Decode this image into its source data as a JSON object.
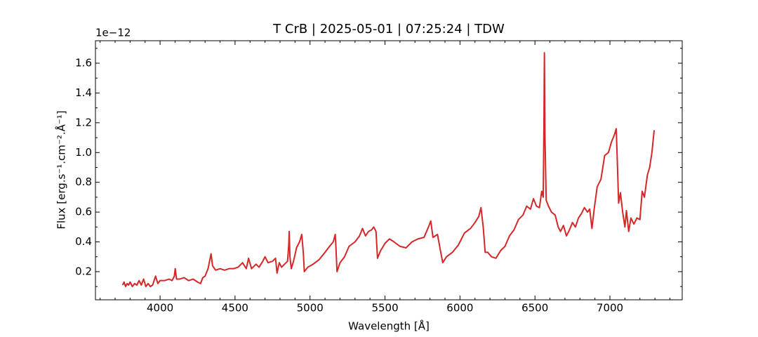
{
  "chart_data": {
    "type": "line",
    "title": "T CrB | 2025-05-01 | 07:25:24 | TDW",
    "x_label": "Wavelength [Å]",
    "y_label": "Flux [erg.s⁻¹.cm⁻².Å⁻¹]",
    "y_offset_label": "1e−12",
    "color": "#d62728",
    "x": [
      3750,
      3760,
      3770,
      3780,
      3790,
      3800,
      3815,
      3830,
      3845,
      3860,
      3875,
      3890,
      3905,
      3920,
      3935,
      3950,
      3970,
      3985,
      4000,
      4030,
      4060,
      4080,
      4095,
      4101,
      4110,
      4130,
      4160,
      4190,
      4220,
      4250,
      4270,
      4285,
      4300,
      4320,
      4340,
      4350,
      4370,
      4400,
      4430,
      4460,
      4490,
      4520,
      4550,
      4575,
      4590,
      4610,
      4640,
      4660,
      4685,
      4700,
      4720,
      4750,
      4770,
      4780,
      4795,
      4810,
      4830,
      4850,
      4858,
      4861,
      4866,
      4875,
      4890,
      4910,
      4930,
      4945,
      4955,
      4962,
      4985,
      5020,
      5060,
      5100,
      5130,
      5155,
      5168,
      5172,
      5180,
      5200,
      5230,
      5260,
      5300,
      5330,
      5350,
      5370,
      5390,
      5410,
      5425,
      5440,
      5450,
      5470,
      5500,
      5530,
      5560,
      5600,
      5640,
      5680,
      5720,
      5760,
      5790,
      5805,
      5820,
      5850,
      5870,
      5885,
      5910,
      5950,
      5990,
      6030,
      6070,
      6100,
      6125,
      6140,
      6155,
      6168,
      6185,
      6210,
      6240,
      6270,
      6300,
      6330,
      6360,
      6390,
      6420,
      6445,
      6470,
      6490,
      6510,
      6530,
      6545,
      6555,
      6560,
      6563,
      6567,
      6575,
      6590,
      6610,
      6635,
      6655,
      6670,
      6690,
      6710,
      6730,
      6750,
      6770,
      6790,
      6810,
      6830,
      6850,
      6865,
      6880,
      6895,
      6915,
      6940,
      6965,
      6990,
      7010,
      7030,
      7042,
      7048,
      7058,
      7070,
      7085,
      7100,
      7110,
      7125,
      7140,
      7160,
      7180,
      7200,
      7215,
      7230,
      7250,
      7265,
      7280,
      7295
    ],
    "values": [
      0.11,
      0.13,
      0.1,
      0.12,
      0.11,
      0.13,
      0.1,
      0.12,
      0.11,
      0.14,
      0.11,
      0.15,
      0.1,
      0.12,
      0.1,
      0.11,
      0.17,
      0.12,
      0.14,
      0.14,
      0.15,
      0.14,
      0.17,
      0.22,
      0.15,
      0.15,
      0.16,
      0.14,
      0.15,
      0.13,
      0.12,
      0.16,
      0.17,
      0.22,
      0.32,
      0.24,
      0.21,
      0.22,
      0.21,
      0.22,
      0.22,
      0.23,
      0.26,
      0.22,
      0.29,
      0.22,
      0.25,
      0.23,
      0.27,
      0.3,
      0.26,
      0.27,
      0.29,
      0.19,
      0.26,
      0.23,
      0.25,
      0.27,
      0.38,
      0.47,
      0.3,
      0.22,
      0.27,
      0.36,
      0.4,
      0.45,
      0.33,
      0.2,
      0.23,
      0.25,
      0.28,
      0.33,
      0.37,
      0.4,
      0.45,
      0.38,
      0.2,
      0.26,
      0.3,
      0.37,
      0.4,
      0.44,
      0.49,
      0.44,
      0.47,
      0.48,
      0.5,
      0.47,
      0.29,
      0.34,
      0.39,
      0.42,
      0.4,
      0.37,
      0.36,
      0.4,
      0.42,
      0.43,
      0.5,
      0.54,
      0.43,
      0.45,
      0.34,
      0.26,
      0.3,
      0.33,
      0.38,
      0.46,
      0.49,
      0.53,
      0.57,
      0.63,
      0.5,
      0.33,
      0.33,
      0.3,
      0.29,
      0.34,
      0.37,
      0.44,
      0.48,
      0.55,
      0.58,
      0.64,
      0.62,
      0.69,
      0.64,
      0.63,
      0.74,
      0.7,
      1.2,
      1.67,
      1.1,
      0.68,
      0.64,
      0.6,
      0.58,
      0.5,
      0.47,
      0.51,
      0.44,
      0.48,
      0.53,
      0.5,
      0.56,
      0.59,
      0.63,
      0.6,
      0.62,
      0.49,
      0.62,
      0.77,
      0.82,
      0.98,
      1.0,
      1.07,
      1.12,
      1.16,
      0.98,
      0.66,
      0.73,
      0.6,
      0.5,
      0.61,
      0.47,
      0.56,
      0.52,
      0.56,
      0.55,
      0.74,
      0.7,
      0.85,
      0.9,
      1.0,
      1.15
    ],
    "xlim": [
      3569,
      7482
    ],
    "ylim": [
      0.011,
      1.751
    ],
    "xticks": [
      4000,
      4500,
      5000,
      5500,
      6000,
      6500,
      7000
    ],
    "xminorticks": [
      3600,
      3700,
      3800,
      3900,
      4100,
      4200,
      4300,
      4400,
      4600,
      4700,
      4800,
      4900,
      5100,
      5200,
      5300,
      5400,
      5600,
      5700,
      5800,
      5900,
      6100,
      6200,
      6300,
      6400,
      6600,
      6700,
      6800,
      6900,
      7100,
      7200,
      7300,
      7400
    ],
    "yticks": [
      0.2,
      0.4,
      0.6,
      0.8,
      {
        "value": 1,
        "label": "1.0"
      },
      1.2,
      1.4,
      1.6
    ],
    "yminorticks": [
      0.1,
      0.3,
      0.5,
      0.7,
      0.9,
      1.1,
      1.3,
      1.5,
      1.7
    ]
  }
}
